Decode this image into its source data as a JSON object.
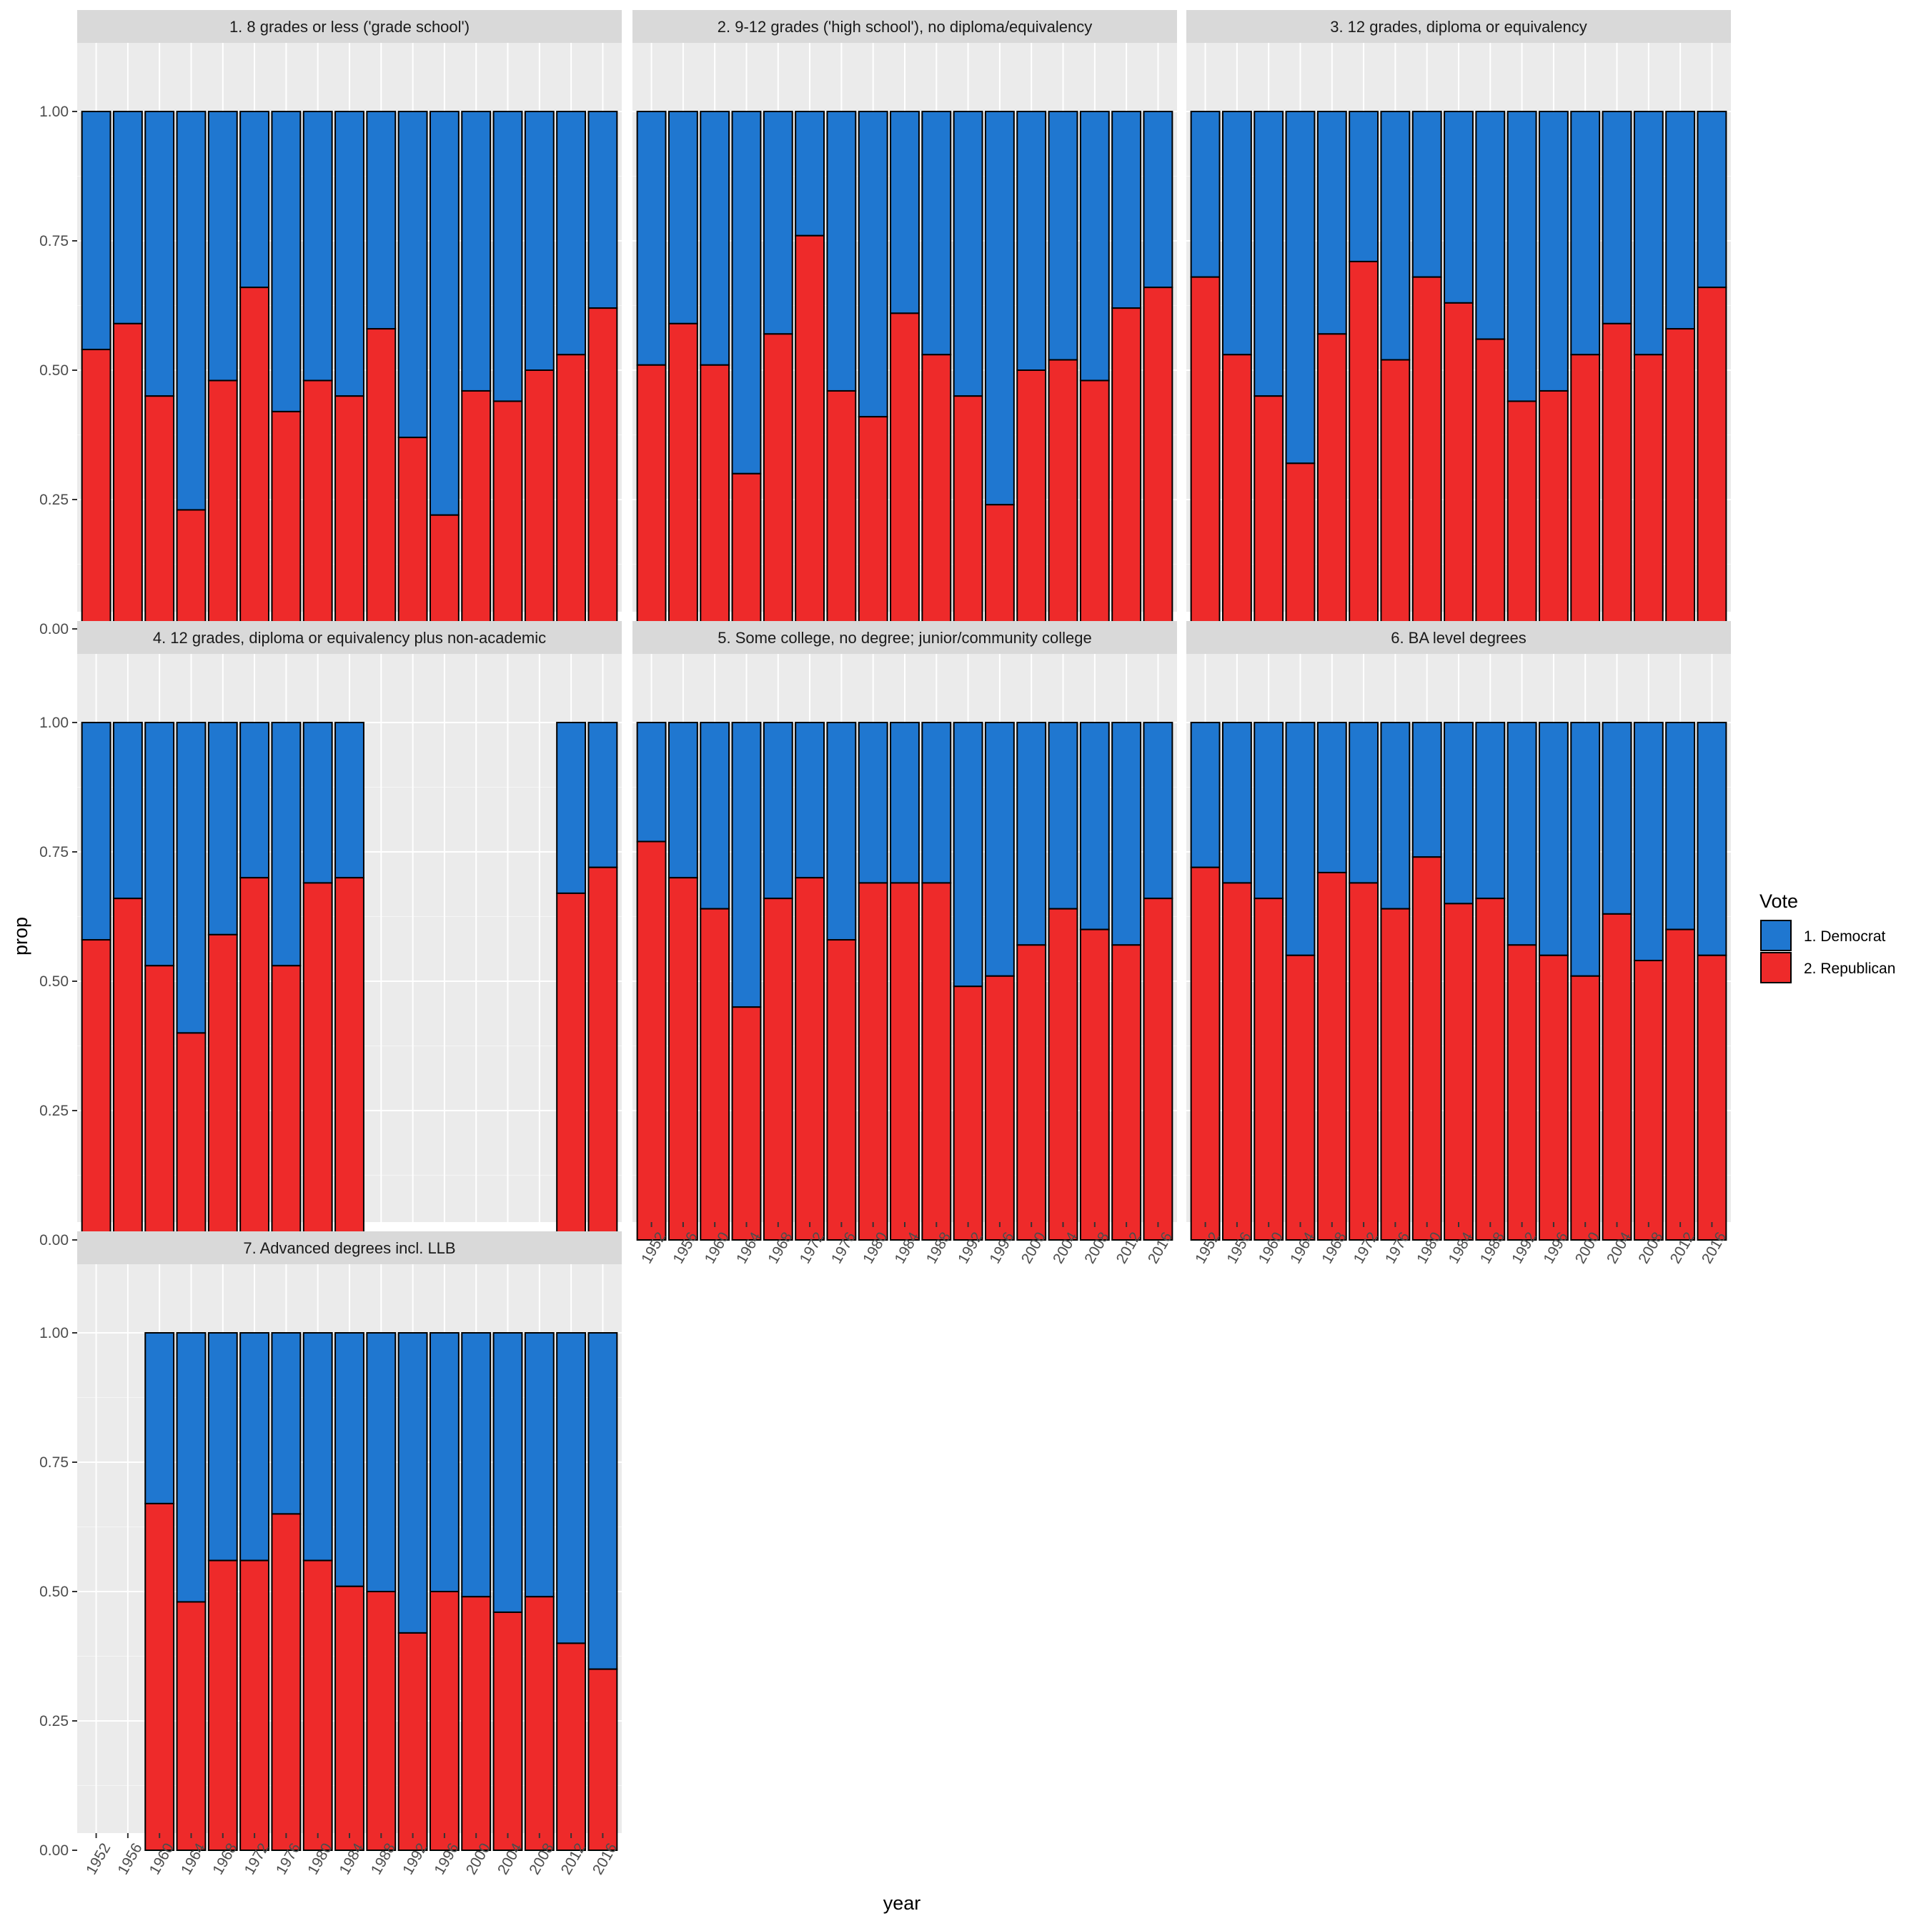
{
  "chart_data": {
    "type": "bar",
    "stacked": true,
    "xlabel": "year",
    "ylabel": "prop",
    "ylim": [
      0,
      1
    ],
    "yticks": [
      "0.00",
      "0.25",
      "0.50",
      "0.75",
      "1.00"
    ],
    "categories": [
      "1952",
      "1956",
      "1960",
      "1964",
      "1968",
      "1972",
      "1976",
      "1980",
      "1984",
      "1988",
      "1992",
      "1996",
      "2000",
      "2004",
      "2008",
      "2012",
      "2016"
    ],
    "legend": {
      "title": "Vote",
      "position": "right",
      "entries": [
        {
          "label": "1. Democrat",
          "color": "#1f77d0"
        },
        {
          "label": "2. Republican",
          "color": "#ee2a2a"
        }
      ]
    },
    "colors": {
      "democrat": "#1f77d0",
      "republican": "#ee2a2a",
      "panel_bg": "#ebebeb",
      "strip_bg": "#d9d9d9"
    },
    "grid": true,
    "panels": [
      {
        "title": "1. 8 grades or less ('grade school')",
        "republican": [
          0.54,
          0.59,
          0.45,
          0.23,
          0.48,
          0.66,
          0.42,
          0.48,
          0.45,
          0.58,
          0.37,
          0.22,
          0.46,
          0.44,
          0.5,
          0.53,
          0.62
        ]
      },
      {
        "title": "2. 9-12 grades ('high school'), no diploma/equivalency",
        "republican": [
          0.51,
          0.59,
          0.51,
          0.3,
          0.57,
          0.76,
          0.46,
          0.41,
          0.61,
          0.53,
          0.45,
          0.24,
          0.5,
          0.52,
          0.48,
          0.62,
          0.66
        ]
      },
      {
        "title": "3. 12 grades, diploma or equivalency",
        "republican": [
          0.68,
          0.53,
          0.45,
          0.32,
          0.57,
          0.71,
          0.52,
          0.68,
          0.63,
          0.56,
          0.44,
          0.46,
          0.53,
          0.59,
          0.53,
          0.58,
          0.66
        ]
      },
      {
        "title": "4. 12 grades, diploma or equivalency plus non-academic",
        "republican": [
          0.58,
          0.66,
          0.53,
          0.4,
          0.59,
          0.7,
          0.53,
          0.69,
          0.7,
          null,
          null,
          null,
          null,
          null,
          null,
          0.67,
          0.72
        ]
      },
      {
        "title": "5. Some college, no degree; junior/community college",
        "republican": [
          0.77,
          0.7,
          0.64,
          0.45,
          0.66,
          0.7,
          0.58,
          0.69,
          0.69,
          0.69,
          0.49,
          0.51,
          0.57,
          0.64,
          0.6,
          0.57,
          0.66
        ]
      },
      {
        "title": "6. BA level degrees",
        "republican": [
          0.72,
          0.69,
          0.66,
          0.55,
          0.71,
          0.69,
          0.64,
          0.74,
          0.65,
          0.66,
          0.57,
          0.55,
          0.51,
          0.63,
          0.54,
          0.6,
          0.55
        ]
      },
      {
        "title": "7. Advanced degrees incl. LLB",
        "republican": [
          null,
          null,
          0.67,
          0.48,
          0.56,
          0.56,
          0.65,
          0.56,
          0.51,
          0.5,
          0.42,
          0.5,
          0.49,
          0.46,
          0.49,
          0.4,
          0.35
        ]
      }
    ]
  }
}
